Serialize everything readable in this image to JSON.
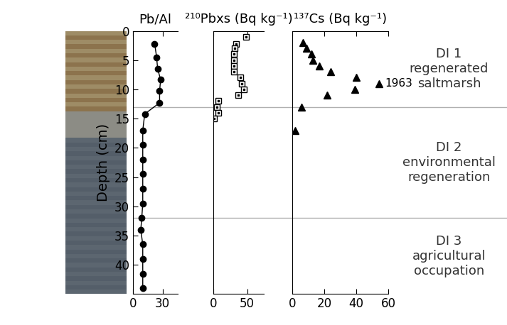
{
  "chart_data": [
    {
      "type": "line",
      "title": "Pb/Al",
      "y_label": "Depth (cm)",
      "x": [
        22,
        24,
        25,
        28,
        27,
        27,
        12,
        10,
        10,
        10,
        10,
        10,
        10,
        9,
        8,
        10,
        10,
        10,
        10
      ],
      "y": [
        2.2,
        4.5,
        6.5,
        8.3,
        10.3,
        12.3,
        14.2,
        17,
        19.5,
        22,
        24.5,
        27,
        29.5,
        32,
        34,
        36.5,
        39,
        41.5,
        44
      ],
      "xlim": [
        0,
        45
      ],
      "xticks": [
        0,
        30
      ],
      "ylim": [
        45,
        0
      ],
      "yticks": [
        0,
        5,
        10,
        15,
        20,
        25,
        30,
        35,
        40
      ],
      "color": "#000000",
      "marker": "o",
      "line_style": "solid"
    },
    {
      "type": "scatter",
      "title": "²¹⁰Pbxs (Bq kg⁻¹)",
      "x": [
        48,
        33,
        31,
        30,
        30,
        30,
        30,
        40,
        42,
        45,
        37,
        7,
        5,
        7,
        1
      ],
      "y": [
        1,
        2.2,
        3,
        4,
        5,
        6,
        7,
        8,
        9,
        10,
        11,
        12,
        13,
        14,
        15
      ],
      "xlim": [
        0,
        75
      ],
      "xticks": [
        0,
        50
      ],
      "ylim": [
        45,
        0
      ],
      "color": "#000000",
      "marker": "s"
    },
    {
      "type": "scatter",
      "title": "¹³⁷Cs (Bq kg⁻¹)",
      "x": [
        7,
        9,
        12,
        13,
        17,
        24,
        40,
        54,
        39,
        22,
        6,
        2
      ],
      "y": [
        2,
        3,
        4,
        5,
        6,
        7,
        8,
        9,
        10,
        11,
        13,
        17
      ],
      "xlim": [
        0,
        60
      ],
      "xticks": [
        0,
        20,
        40,
        60
      ],
      "ylim": [
        45,
        0
      ],
      "color": "#000000",
      "marker": "^",
      "annotations": [
        {
          "text": "1963",
          "x": 54,
          "y": 9
        }
      ]
    }
  ],
  "zones": [
    {
      "lines": [
        "DI 1",
        "regenerated",
        "saltmarsh"
      ],
      "from": 0,
      "to": 13
    },
    {
      "lines": [
        "DI 2",
        "environmental",
        "regeneration"
      ],
      "from": 13,
      "to": 32
    },
    {
      "lines": [
        "DI 3",
        "agricultural",
        "occupation"
      ],
      "from": 32,
      "to": 45
    }
  ]
}
